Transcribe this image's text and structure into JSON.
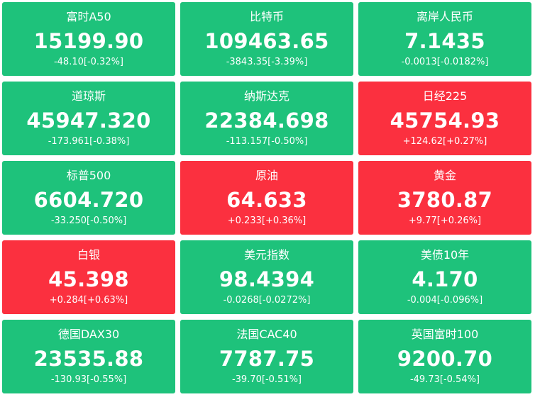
{
  "tiles": [
    {
      "name": "富时A50",
      "price": "15199.90",
      "change": "-48.10[-0.32%]",
      "trend": "down"
    },
    {
      "name": "比特币",
      "price": "109463.65",
      "change": "-3843.35[-3.39%]",
      "trend": "down"
    },
    {
      "name": "离岸人民币",
      "price": "7.1435",
      "change": "-0.0013[-0.0182%]",
      "trend": "down"
    },
    {
      "name": "道琼斯",
      "price": "45947.320",
      "change": "-173.961[-0.38%]",
      "trend": "down"
    },
    {
      "name": "纳斯达克",
      "price": "22384.698",
      "change": "-113.157[-0.50%]",
      "trend": "down"
    },
    {
      "name": "日经225",
      "price": "45754.93",
      "change": "+124.62[+0.27%]",
      "trend": "up"
    },
    {
      "name": "标普500",
      "price": "6604.720",
      "change": "-33.250[-0.50%]",
      "trend": "down"
    },
    {
      "name": "原油",
      "price": "64.633",
      "change": "+0.233[+0.36%]",
      "trend": "up"
    },
    {
      "name": "黄金",
      "price": "3780.87",
      "change": "+9.77[+0.26%]",
      "trend": "up"
    },
    {
      "name": "白银",
      "price": "45.398",
      "change": "+0.284[+0.63%]",
      "trend": "up"
    },
    {
      "name": "美元指数",
      "price": "98.4394",
      "change": "-0.0268[-0.0272%]",
      "trend": "down"
    },
    {
      "name": "美债10年",
      "price": "4.170",
      "change": "-0.004[-0.096%]",
      "trend": "down"
    },
    {
      "name": "德国DAX30",
      "price": "23535.88",
      "change": "-130.93[-0.55%]",
      "trend": "down"
    },
    {
      "name": "法国CAC40",
      "price": "7787.75",
      "change": "-39.70[-0.51%]",
      "trend": "down"
    },
    {
      "name": "英国富时100",
      "price": "9200.70",
      "change": "-49.73[-0.54%]",
      "trend": "down"
    }
  ],
  "colors": {
    "down": "#1ec27b",
    "up": "#fb303f",
    "text": "#ffffff"
  }
}
